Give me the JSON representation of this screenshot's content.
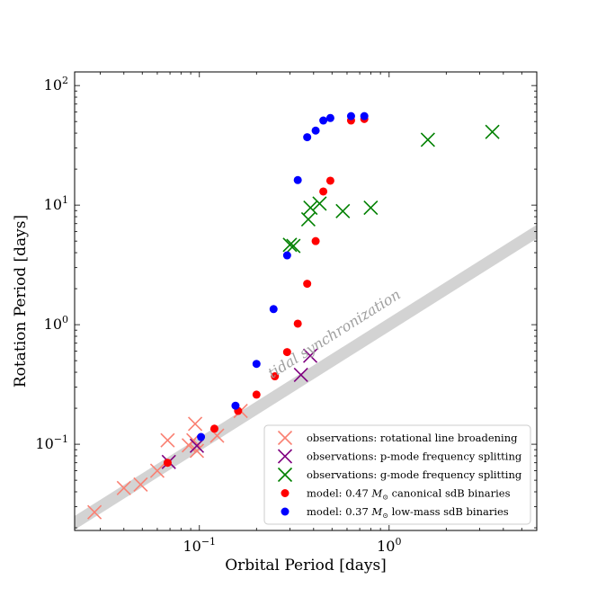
{
  "chart_data": {
    "type": "scatter",
    "xscale": "log",
    "yscale": "log",
    "xlabel": "Orbital Period [days]",
    "ylabel": "Rotation Period [days]",
    "xlim": [
      0.022,
      6.0
    ],
    "ylim": [
      0.019,
      130
    ],
    "xticks": [
      {
        "value": 0.1,
        "base": "10",
        "exp": "−1"
      },
      {
        "value": 1,
        "base": "10",
        "exp": "0"
      }
    ],
    "yticks": [
      {
        "value": 0.1,
        "base": "10",
        "exp": "−1"
      },
      {
        "value": 1,
        "base": "10",
        "exp": "0"
      },
      {
        "value": 10,
        "base": "10",
        "exp": "1"
      },
      {
        "value": 100,
        "base": "10",
        "exp": "2"
      }
    ],
    "sync_line": {
      "label": "tidal synchronization",
      "color": "#d3d3d3"
    },
    "series": [
      {
        "name": "observations: rotational line broadening",
        "marker": "x",
        "color": "#fa8072",
        "points": [
          [
            0.028,
            0.027
          ],
          [
            0.04,
            0.043
          ],
          [
            0.049,
            0.046
          ],
          [
            0.06,
            0.06
          ],
          [
            0.068,
            0.108
          ],
          [
            0.088,
            0.098
          ],
          [
            0.093,
            0.108
          ],
          [
            0.095,
            0.148
          ],
          [
            0.097,
            0.088
          ],
          [
            0.124,
            0.118
          ],
          [
            0.165,
            0.19
          ]
        ]
      },
      {
        "name": "observations: p-mode frequency splitting",
        "marker": "x",
        "color": "#800080",
        "points": [
          [
            0.069,
            0.071
          ],
          [
            0.097,
            0.097
          ],
          [
            0.343,
            0.38
          ],
          [
            0.384,
            0.55
          ]
        ]
      },
      {
        "name": "observations: g-mode frequency splitting",
        "marker": "x",
        "color": "#008000",
        "points": [
          [
            0.3,
            4.65
          ],
          [
            0.313,
            4.55
          ],
          [
            0.375,
            7.6
          ],
          [
            0.385,
            9.5
          ],
          [
            0.43,
            10.3
          ],
          [
            0.57,
            8.9
          ],
          [
            0.8,
            9.5
          ],
          [
            1.6,
            35.2
          ],
          [
            3.5,
            41.0
          ]
        ]
      },
      {
        "name": "model: 0.47 M☉ canonical sdB binaries",
        "legend_pre": "model: 0.47",
        "legend_unit": "M",
        "legend_post": " canonical sdB binaries",
        "marker": "o",
        "color": "#ff0000",
        "points": [
          [
            0.068,
            0.07
          ],
          [
            0.12,
            0.135
          ],
          [
            0.16,
            0.19
          ],
          [
            0.2,
            0.26
          ],
          [
            0.25,
            0.37
          ],
          [
            0.29,
            0.59
          ],
          [
            0.33,
            1.02
          ],
          [
            0.37,
            2.2
          ],
          [
            0.41,
            5.0
          ],
          [
            0.45,
            13.0
          ],
          [
            0.49,
            16.0
          ],
          [
            0.63,
            51.0
          ],
          [
            0.74,
            52.5
          ]
        ]
      },
      {
        "name": "model: 0.37 M☉ low-mass sdB binaries",
        "legend_pre": "model: 0.37",
        "legend_unit": "M",
        "legend_post": " low-mass sdB binaries",
        "marker": "o",
        "color": "#0000ff",
        "points": [
          [
            0.102,
            0.115
          ],
          [
            0.155,
            0.21
          ],
          [
            0.2,
            0.47
          ],
          [
            0.246,
            1.35
          ],
          [
            0.29,
            3.8
          ],
          [
            0.33,
            16.2
          ],
          [
            0.37,
            37.0
          ],
          [
            0.41,
            42.0
          ],
          [
            0.45,
            51.0
          ],
          [
            0.49,
            53.5
          ],
          [
            0.63,
            55.5
          ],
          [
            0.74,
            55.5
          ]
        ]
      }
    ]
  }
}
